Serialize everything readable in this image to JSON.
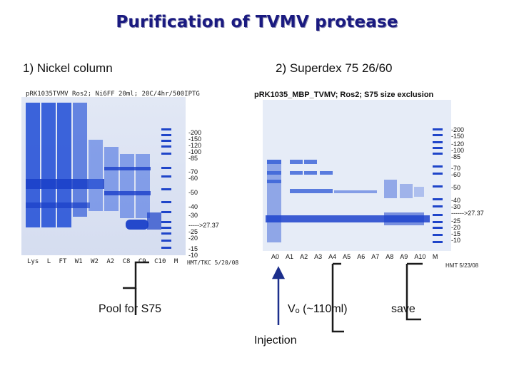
{
  "title": "Purification of TVMV protease",
  "sections": {
    "nickel": "1) Nickel column",
    "superdex": "2) Superdex 75 26/60"
  },
  "gel1": {
    "header": "pRK1035TVMV Ros2; Ni6FF 20ml; 20C/4hr/500IPTG",
    "markers": [
      "-200",
      "-150",
      "-120",
      "-100",
      "-85",
      "-70",
      "-60",
      "-50",
      "-40",
      "-30",
      "----->27.37",
      "-25",
      "-20",
      "-15",
      "-10"
    ],
    "lanes": [
      "Lys",
      "L",
      "FT",
      "W1",
      "W2",
      "A2",
      "C8",
      "C9",
      "C10",
      "M"
    ],
    "footer": "HMT/TKC 5/20/08"
  },
  "gel2": {
    "header": "pRK1035_MBP_TVMV; Ros2; S75 size exclusion",
    "markers": [
      "-200",
      "-150",
      "-120",
      "-100",
      "-85",
      "-70",
      "-60",
      "-50",
      "-40",
      "-30",
      "------>27.37",
      "-25",
      "-20",
      "-15",
      "-10"
    ],
    "lanes": [
      "A0",
      "A1",
      "A2",
      "A3",
      "A4",
      "A5",
      "A6",
      "A7",
      "A8",
      "A9",
      "A10",
      "M"
    ],
    "footer": "HMT 5/23/08"
  },
  "annotations": {
    "pool": "Pool for S75",
    "vo": "Vₒ (~110ml)",
    "save": "save",
    "injection": "Injection"
  },
  "colors": {
    "title": "#1a1a80",
    "gel_blue": "#2a52d4",
    "bracket": "#1a1a1a",
    "arrow": "#1c2f8c"
  }
}
